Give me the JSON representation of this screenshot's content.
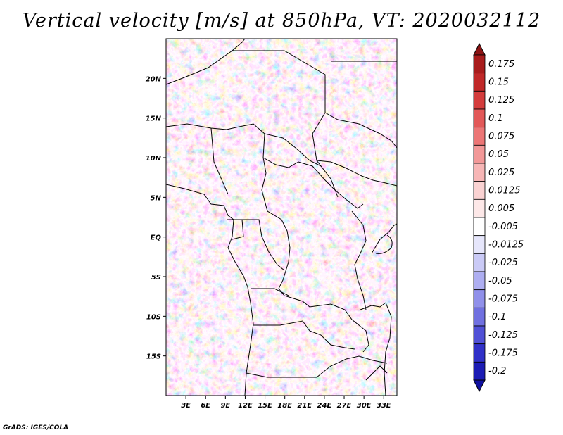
{
  "title": "Vertical velocity [m/s] at 850hPa, VT: 2020032112",
  "credit": "GrADS: IGES/COLA",
  "map": {
    "lon_range": [
      0,
      35
    ],
    "lat_range": [
      -20,
      25
    ],
    "lat_ticks": [
      {
        "value": 20,
        "label": "20N"
      },
      {
        "value": 15,
        "label": "15N"
      },
      {
        "value": 10,
        "label": "10N"
      },
      {
        "value": 5,
        "label": "5N"
      },
      {
        "value": 0,
        "label": "EQ"
      },
      {
        "value": -5,
        "label": "5S"
      },
      {
        "value": -10,
        "label": "10S"
      },
      {
        "value": -15,
        "label": "15S"
      }
    ],
    "lon_ticks": [
      {
        "value": 3,
        "label": "3E"
      },
      {
        "value": 6,
        "label": "6E"
      },
      {
        "value": 9,
        "label": "9E"
      },
      {
        "value": 12,
        "label": "12E"
      },
      {
        "value": 15,
        "label": "15E"
      },
      {
        "value": 18,
        "label": "18E"
      },
      {
        "value": 21,
        "label": "21E"
      },
      {
        "value": 24,
        "label": "24E"
      },
      {
        "value": 27,
        "label": "27E"
      },
      {
        "value": 30,
        "label": "30E"
      },
      {
        "value": 33,
        "label": "33E"
      }
    ]
  },
  "colorbar": {
    "levels": [
      {
        "label": "0.175",
        "color": "#a81c1c"
      },
      {
        "label": "0.15",
        "color": "#c02828"
      },
      {
        "label": "0.125",
        "color": "#d43c3c"
      },
      {
        "label": "0.1",
        "color": "#e25858"
      },
      {
        "label": "0.075",
        "color": "#ec7676"
      },
      {
        "label": "0.05",
        "color": "#f29898"
      },
      {
        "label": "0.025",
        "color": "#f7b6b6"
      },
      {
        "label": "0.0125",
        "color": "#fad2d2"
      },
      {
        "label": "0.005",
        "color": "#fde8e8"
      },
      {
        "label": "-0.005",
        "color": "#ffffff"
      },
      {
        "label": "-0.0125",
        "color": "#e6e6fb"
      },
      {
        "label": "-0.025",
        "color": "#cacaf6"
      },
      {
        "label": "-0.05",
        "color": "#aeaef1"
      },
      {
        "label": "-0.075",
        "color": "#9090ea"
      },
      {
        "label": "-0.1",
        "color": "#7070e0"
      },
      {
        "label": "-0.125",
        "color": "#5050d6"
      },
      {
        "label": "-0.175",
        "color": "#3030c8"
      },
      {
        "label": "-0.2",
        "color": "#1c1cb4"
      }
    ],
    "top_color": "#8c1414",
    "bottom_color": "#1010a0"
  }
}
